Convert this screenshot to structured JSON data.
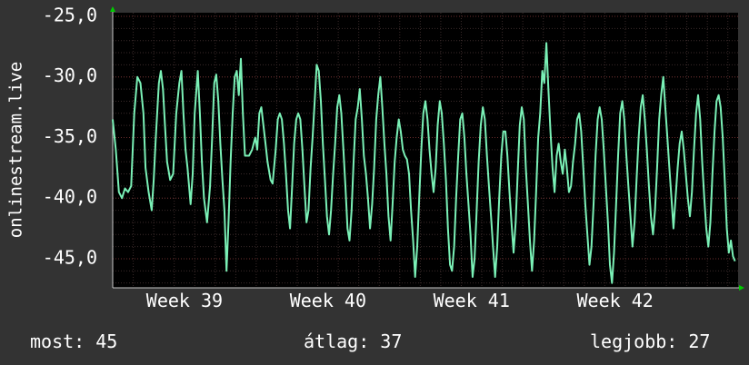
{
  "chart_data": {
    "type": "line",
    "ylabel": "onlinestream.live",
    "y_ticks": [
      -25.0,
      -30.0,
      -35.0,
      -40.0,
      -45.0
    ],
    "y_tick_labels": [
      "-25,0",
      "-30,0",
      "-35,0",
      "-40,0",
      "-45,0"
    ],
    "ylim": [
      -47.4,
      -24.7
    ],
    "x_ticks": [
      {
        "label": "Week 39",
        "at": 3.5
      },
      {
        "label": "Week 40",
        "at": 10.5
      },
      {
        "label": "Week 41",
        "at": 17.5
      },
      {
        "label": "Week 42",
        "at": 24.5
      }
    ],
    "xlim": [
      0,
      30.5
    ],
    "grid": true,
    "colors": {
      "background": "#333333",
      "plot_area": "#000000",
      "line": "#7af0b6",
      "grid_minor": "#3a2a2a",
      "grid_major": "#6b2e2e",
      "axis": "#c8c8c8",
      "arrow": "#00cc00"
    },
    "series": [
      {
        "values": [
          [
            0.0,
            -33.5
          ],
          [
            0.15,
            -36.0
          ],
          [
            0.3,
            -39.5
          ],
          [
            0.45,
            -40.0
          ],
          [
            0.6,
            -39.2
          ],
          [
            0.75,
            -39.5
          ],
          [
            0.9,
            -39.0
          ],
          [
            1.05,
            -33.0
          ],
          [
            1.2,
            -30.0
          ],
          [
            1.35,
            -30.5
          ],
          [
            1.5,
            -33.0
          ],
          [
            1.6,
            -37.5
          ],
          [
            1.75,
            -39.5
          ],
          [
            1.9,
            -41.0
          ],
          [
            2.0,
            -38.5
          ],
          [
            2.1,
            -35.0
          ],
          [
            2.25,
            -30.5
          ],
          [
            2.35,
            -29.5
          ],
          [
            2.45,
            -31.0
          ],
          [
            2.55,
            -34.0
          ],
          [
            2.65,
            -37.0
          ],
          [
            2.8,
            -38.5
          ],
          [
            2.95,
            -38.0
          ],
          [
            3.1,
            -33.0
          ],
          [
            3.25,
            -30.5
          ],
          [
            3.35,
            -29.5
          ],
          [
            3.45,
            -33.0
          ],
          [
            3.55,
            -36.0
          ],
          [
            3.65,
            -37.5
          ],
          [
            3.8,
            -40.5
          ],
          [
            3.9,
            -38.0
          ],
          [
            4.0,
            -33.0
          ],
          [
            4.15,
            -29.5
          ],
          [
            4.25,
            -33.0
          ],
          [
            4.35,
            -37.0
          ],
          [
            4.45,
            -40.0
          ],
          [
            4.6,
            -42.0
          ],
          [
            4.75,
            -39.0
          ],
          [
            4.85,
            -35.0
          ],
          [
            4.95,
            -30.5
          ],
          [
            5.05,
            -29.8
          ],
          [
            5.15,
            -32.0
          ],
          [
            5.25,
            -35.5
          ],
          [
            5.35,
            -38.5
          ],
          [
            5.45,
            -41.0
          ],
          [
            5.55,
            -46.0
          ],
          [
            5.65,
            -42.0
          ],
          [
            5.75,
            -37.0
          ],
          [
            5.85,
            -33.0
          ],
          [
            5.95,
            -30.0
          ],
          [
            6.05,
            -29.5
          ],
          [
            6.15,
            -31.5
          ],
          [
            6.25,
            -28.5
          ],
          [
            6.35,
            -33.0
          ],
          [
            6.45,
            -36.5
          ],
          [
            6.55,
            -36.5
          ],
          [
            6.65,
            -36.5
          ],
          [
            6.8,
            -36.0
          ],
          [
            6.95,
            -35.0
          ],
          [
            7.05,
            -36.0
          ],
          [
            7.15,
            -33.0
          ],
          [
            7.25,
            -32.5
          ],
          [
            7.35,
            -34.0
          ],
          [
            7.45,
            -35.5
          ],
          [
            7.55,
            -37.0
          ],
          [
            7.7,
            -38.5
          ],
          [
            7.8,
            -38.8
          ],
          [
            7.95,
            -36.0
          ],
          [
            8.05,
            -33.5
          ],
          [
            8.15,
            -33.0
          ],
          [
            8.25,
            -33.5
          ],
          [
            8.35,
            -35.5
          ],
          [
            8.45,
            -38.0
          ],
          [
            8.55,
            -41.0
          ],
          [
            8.65,
            -42.5
          ],
          [
            8.75,
            -39.0
          ],
          [
            8.85,
            -35.5
          ],
          [
            8.95,
            -33.5
          ],
          [
            9.05,
            -33.0
          ],
          [
            9.15,
            -33.5
          ],
          [
            9.25,
            -36.0
          ],
          [
            9.35,
            -39.0
          ],
          [
            9.45,
            -42.0
          ],
          [
            9.55,
            -41.0
          ],
          [
            9.65,
            -37.5
          ],
          [
            9.75,
            -35.0
          ],
          [
            9.85,
            -32.0
          ],
          [
            9.95,
            -29.0
          ],
          [
            10.05,
            -29.5
          ],
          [
            10.15,
            -32.0
          ],
          [
            10.25,
            -35.5
          ],
          [
            10.35,
            -38.5
          ],
          [
            10.45,
            -41.5
          ],
          [
            10.55,
            -43.0
          ],
          [
            10.65,
            -41.0
          ],
          [
            10.75,
            -38.0
          ],
          [
            10.85,
            -35.5
          ],
          [
            10.95,
            -32.5
          ],
          [
            11.05,
            -31.5
          ],
          [
            11.15,
            -33.0
          ],
          [
            11.25,
            -36.0
          ],
          [
            11.35,
            -39.0
          ],
          [
            11.45,
            -42.5
          ],
          [
            11.55,
            -43.5
          ],
          [
            11.65,
            -41.0
          ],
          [
            11.75,
            -37.0
          ],
          [
            11.85,
            -33.5
          ],
          [
            11.95,
            -32.5
          ],
          [
            12.05,
            -31.0
          ],
          [
            12.15,
            -33.5
          ],
          [
            12.25,
            -36.5
          ],
          [
            12.35,
            -38.0
          ],
          [
            12.45,
            -40.0
          ],
          [
            12.55,
            -42.5
          ],
          [
            12.65,
            -40.5
          ],
          [
            12.75,
            -37.5
          ],
          [
            12.85,
            -33.5
          ],
          [
            12.95,
            -31.5
          ],
          [
            13.05,
            -30.0
          ],
          [
            13.15,
            -32.5
          ],
          [
            13.25,
            -35.5
          ],
          [
            13.35,
            -38.0
          ],
          [
            13.45,
            -41.5
          ],
          [
            13.55,
            -43.5
          ],
          [
            13.65,
            -40.5
          ],
          [
            13.75,
            -37.0
          ],
          [
            13.85,
            -35.0
          ],
          [
            13.95,
            -33.5
          ],
          [
            14.05,
            -34.5
          ],
          [
            14.15,
            -36.0
          ],
          [
            14.25,
            -36.5
          ],
          [
            14.35,
            -36.8
          ],
          [
            14.45,
            -38.0
          ],
          [
            14.55,
            -41.0
          ],
          [
            14.65,
            -43.5
          ],
          [
            14.75,
            -46.5
          ],
          [
            14.85,
            -44.0
          ],
          [
            14.95,
            -40.0
          ],
          [
            15.05,
            -36.0
          ],
          [
            15.15,
            -33.0
          ],
          [
            15.25,
            -32.0
          ],
          [
            15.35,
            -33.5
          ],
          [
            15.45,
            -36.0
          ],
          [
            15.55,
            -38.0
          ],
          [
            15.65,
            -39.5
          ],
          [
            15.75,
            -37.5
          ],
          [
            15.85,
            -34.0
          ],
          [
            15.95,
            -32.0
          ],
          [
            16.05,
            -33.0
          ],
          [
            16.15,
            -35.5
          ],
          [
            16.25,
            -38.5
          ],
          [
            16.35,
            -42.5
          ],
          [
            16.45,
            -45.5
          ],
          [
            16.55,
            -46.0
          ],
          [
            16.65,
            -44.0
          ],
          [
            16.75,
            -40.0
          ],
          [
            16.85,
            -36.5
          ],
          [
            16.95,
            -33.5
          ],
          [
            17.05,
            -33.0
          ],
          [
            17.15,
            -35.0
          ],
          [
            17.25,
            -38.0
          ],
          [
            17.35,
            -40.5
          ],
          [
            17.45,
            -43.0
          ],
          [
            17.55,
            -46.5
          ],
          [
            17.65,
            -45.0
          ],
          [
            17.75,
            -41.0
          ],
          [
            17.85,
            -37.0
          ],
          [
            17.95,
            -34.0
          ],
          [
            18.05,
            -32.5
          ],
          [
            18.15,
            -33.5
          ],
          [
            18.25,
            -36.5
          ],
          [
            18.35,
            -39.0
          ],
          [
            18.45,
            -41.5
          ],
          [
            18.55,
            -44.0
          ],
          [
            18.65,
            -46.5
          ],
          [
            18.75,
            -44.0
          ],
          [
            18.85,
            -40.0
          ],
          [
            18.95,
            -36.5
          ],
          [
            19.05,
            -34.5
          ],
          [
            19.15,
            -34.5
          ],
          [
            19.25,
            -36.5
          ],
          [
            19.35,
            -39.5
          ],
          [
            19.45,
            -42.0
          ],
          [
            19.55,
            -44.5
          ],
          [
            19.65,
            -42.0
          ],
          [
            19.75,
            -38.0
          ],
          [
            19.85,
            -34.0
          ],
          [
            19.95,
            -32.5
          ],
          [
            20.05,
            -33.5
          ],
          [
            20.15,
            -37.5
          ],
          [
            20.25,
            -40.5
          ],
          [
            20.35,
            -43.5
          ],
          [
            20.45,
            -46.0
          ],
          [
            20.55,
            -43.5
          ],
          [
            20.65,
            -39.5
          ],
          [
            20.75,
            -35.0
          ],
          [
            20.85,
            -33.0
          ],
          [
            20.95,
            -29.5
          ],
          [
            21.05,
            -30.5
          ],
          [
            21.15,
            -27.2
          ],
          [
            21.25,
            -31.0
          ],
          [
            21.35,
            -34.5
          ],
          [
            21.45,
            -37.5
          ],
          [
            21.55,
            -39.5
          ],
          [
            21.65,
            -36.5
          ],
          [
            21.75,
            -35.5
          ],
          [
            21.85,
            -37.0
          ],
          [
            21.95,
            -38.0
          ],
          [
            22.05,
            -36.0
          ],
          [
            22.15,
            -37.5
          ],
          [
            22.25,
            -39.5
          ],
          [
            22.35,
            -39.0
          ],
          [
            22.45,
            -37.0
          ],
          [
            22.55,
            -35.5
          ],
          [
            22.65,
            -33.5
          ],
          [
            22.75,
            -33.0
          ],
          [
            22.85,
            -34.5
          ],
          [
            22.95,
            -37.5
          ],
          [
            23.05,
            -40.5
          ],
          [
            23.15,
            -43.0
          ],
          [
            23.25,
            -45.5
          ],
          [
            23.35,
            -44.0
          ],
          [
            23.45,
            -40.5
          ],
          [
            23.55,
            -36.5
          ],
          [
            23.65,
            -33.5
          ],
          [
            23.75,
            -32.5
          ],
          [
            23.85,
            -33.5
          ],
          [
            23.95,
            -36.0
          ],
          [
            24.05,
            -39.0
          ],
          [
            24.15,
            -42.0
          ],
          [
            24.25,
            -45.5
          ],
          [
            24.35,
            -47.0
          ],
          [
            24.45,
            -44.5
          ],
          [
            24.55,
            -40.5
          ],
          [
            24.65,
            -36.5
          ],
          [
            24.75,
            -33.0
          ],
          [
            24.85,
            -32.0
          ],
          [
            24.95,
            -33.5
          ],
          [
            25.05,
            -36.5
          ],
          [
            25.15,
            -39.0
          ],
          [
            25.25,
            -41.5
          ],
          [
            25.35,
            -44.0
          ],
          [
            25.45,
            -42.0
          ],
          [
            25.55,
            -38.5
          ],
          [
            25.65,
            -35.0
          ],
          [
            25.75,
            -32.5
          ],
          [
            25.85,
            -31.5
          ],
          [
            25.95,
            -33.5
          ],
          [
            26.05,
            -36.0
          ],
          [
            26.15,
            -39.0
          ],
          [
            26.25,
            -41.5
          ],
          [
            26.35,
            -43.0
          ],
          [
            26.45,
            -41.0
          ],
          [
            26.55,
            -37.5
          ],
          [
            26.65,
            -33.5
          ],
          [
            26.75,
            -31.5
          ],
          [
            26.85,
            -30.0
          ],
          [
            26.95,
            -32.5
          ],
          [
            27.05,
            -35.0
          ],
          [
            27.15,
            -37.5
          ],
          [
            27.25,
            -40.0
          ],
          [
            27.35,
            -42.5
          ],
          [
            27.45,
            -40.0
          ],
          [
            27.55,
            -37.5
          ],
          [
            27.65,
            -35.5
          ],
          [
            27.75,
            -34.5
          ],
          [
            27.85,
            -36.0
          ],
          [
            27.95,
            -38.0
          ],
          [
            28.05,
            -40.0
          ],
          [
            28.15,
            -41.5
          ],
          [
            28.25,
            -39.5
          ],
          [
            28.35,
            -36.0
          ],
          [
            28.45,
            -33.0
          ],
          [
            28.55,
            -31.5
          ],
          [
            28.65,
            -33.5
          ],
          [
            28.75,
            -37.0
          ],
          [
            28.85,
            -40.0
          ],
          [
            28.95,
            -42.5
          ],
          [
            29.05,
            -44.0
          ],
          [
            29.15,
            -42.0
          ],
          [
            29.25,
            -38.0
          ],
          [
            29.35,
            -34.5
          ],
          [
            29.45,
            -32.0
          ],
          [
            29.55,
            -31.5
          ],
          [
            29.65,
            -32.5
          ],
          [
            29.75,
            -35.0
          ],
          [
            29.85,
            -38.5
          ],
          [
            29.95,
            -42.5
          ],
          [
            30.05,
            -44.5
          ],
          [
            30.15,
            -43.5
          ],
          [
            30.25,
            -44.8
          ],
          [
            30.35,
            -45.2
          ]
        ]
      }
    ]
  },
  "stats": {
    "current": "most: 45",
    "average": "átlag: 37",
    "best": "legjobb: 27"
  }
}
